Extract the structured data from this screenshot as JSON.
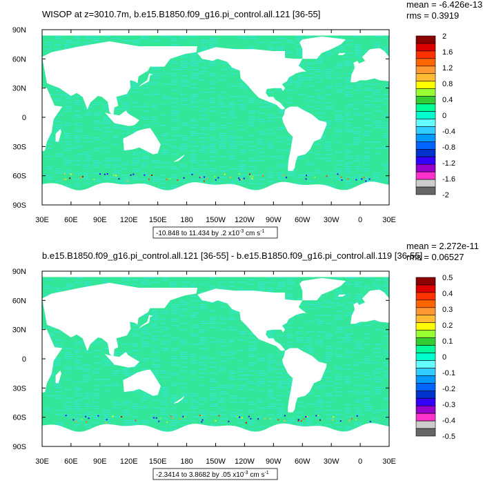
{
  "chart_data": [
    {
      "type": "heatmap",
      "title": "WISOP at z=3010.7m, b.e15.B1850.f09_g16.pi_control.all.121 [36-55]",
      "stats": {
        "mean": "mean = -6.426e-13",
        "rms": "rms = 0.3919"
      },
      "xlabel": "",
      "ylabel": "",
      "x_ticks": [
        "30E",
        "60E",
        "90E",
        "120E",
        "150E",
        "180",
        "150W",
        "120W",
        "90W",
        "60W",
        "30W",
        "0",
        "30E"
      ],
      "y_ticks": [
        "90N",
        "60N",
        "30N",
        "0",
        "30S",
        "60S",
        "90S"
      ],
      "xlim": [
        30,
        390
      ],
      "ylim": [
        -90,
        90
      ],
      "colorbar": {
        "labels": [
          "2",
          "1.6",
          "1.2",
          "0.8",
          "0.4",
          "0",
          "-0.4",
          "-0.8",
          "-1.2",
          "-1.6",
          "-2"
        ],
        "colors": [
          "#8b0000",
          "#dd0000",
          "#ff3300",
          "#ff6600",
          "#ff9933",
          "#ffbb33",
          "#ffff00",
          "#99ff33",
          "#33cc33",
          "#00ff99",
          "#00ffcc",
          "#66ffff",
          "#33ccff",
          "#0099ff",
          "#0066ff",
          "#0033cc",
          "#3300ff",
          "#9900cc",
          "#ff33cc",
          "#cccccc",
          "#666666"
        ]
      },
      "info_label": "-10.848 to 11.434 by .2 x10",
      "info_exp": "-3",
      "info_unit": " cm s",
      "info_unit_exp": "-1"
    },
    {
      "type": "heatmap",
      "title": "b.e15.B1850.f09_g16.pi_control.all.121 [36-55] - b.e15.B1850.f09_g16.pi_control.all.119 [36-55]",
      "stats": {
        "mean": "mean = 2.272e-11",
        "rms": "rms = 0.06527"
      },
      "xlabel": "",
      "ylabel": "",
      "x_ticks": [
        "30E",
        "60E",
        "90E",
        "120E",
        "150E",
        "180",
        "150W",
        "120W",
        "90W",
        "60W",
        "30W",
        "0",
        "30E"
      ],
      "y_ticks": [
        "90N",
        "60N",
        "30N",
        "0",
        "30S",
        "60S",
        "90S"
      ],
      "xlim": [
        30,
        390
      ],
      "ylim": [
        -90,
        90
      ],
      "colorbar": {
        "labels": [
          "0.5",
          "0.4",
          "0.3",
          "0.2",
          "0.1",
          "0",
          "-0.1",
          "-0.2",
          "-0.3",
          "-0.4",
          "-0.5"
        ],
        "colors": [
          "#8b0000",
          "#dd0000",
          "#ff3300",
          "#ff6600",
          "#ff9933",
          "#ffbb33",
          "#ffff00",
          "#99ff33",
          "#33cc33",
          "#00ff99",
          "#00ffcc",
          "#66ffff",
          "#33ccff",
          "#0099ff",
          "#0066ff",
          "#0033cc",
          "#3300ff",
          "#9900cc",
          "#ff33cc",
          "#cccccc",
          "#666666"
        ]
      },
      "info_label": "-2.3414 to 3.8682 by .05 x10",
      "info_exp": "-3",
      "info_unit": " cm s",
      "info_unit_exp": "-1"
    }
  ],
  "colors": {
    "ocean_main": "#33e69a",
    "ocean_alt": "#33e6cc",
    "land": "#ffffff",
    "frame": "#000000"
  }
}
